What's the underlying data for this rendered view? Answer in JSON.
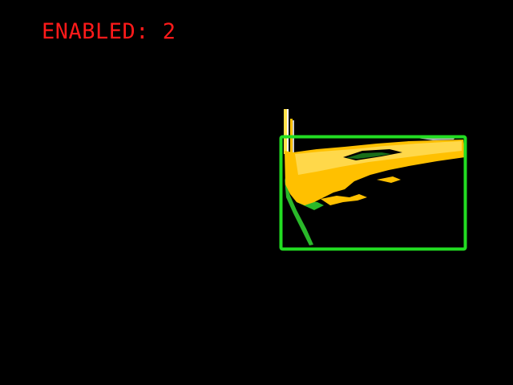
{
  "overlay": {
    "status_text": "ENABLED: 2",
    "status_color": "#ff1a1a"
  },
  "detection": {
    "box_color": "#22dd22"
  },
  "colors": {
    "background": "#000000",
    "object_fill": "#ffc000",
    "object_highlight": "#ffd84a",
    "object_edge": "#2ab82a"
  }
}
